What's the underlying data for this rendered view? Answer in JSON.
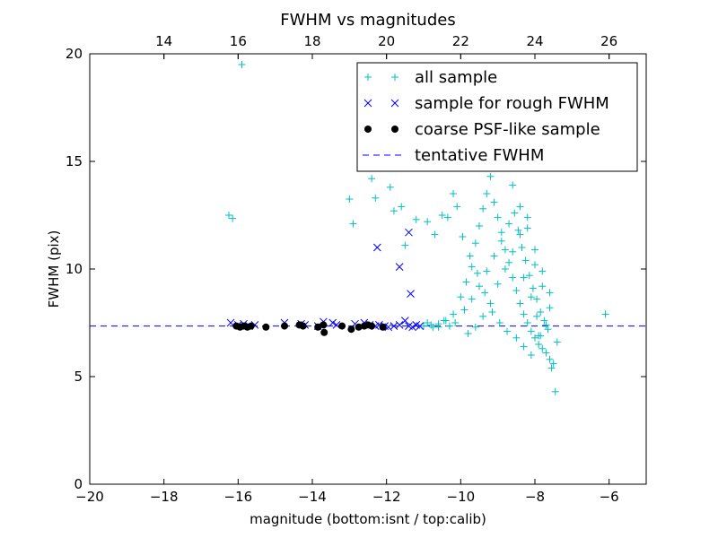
{
  "chart_data": {
    "type": "scatter",
    "title": "FWHM vs magnitudes",
    "xlabel": "magnitude (bottom:isnt / top:calib)",
    "ylabel": "FWHM (pix)",
    "xlim": [
      -20,
      -5
    ],
    "ylim": [
      0,
      20
    ],
    "x_ticks": [
      "−20",
      "−18",
      "−16",
      "−14",
      "−12",
      "−10",
      "−8",
      "−6"
    ],
    "x_tick_values": [
      -20,
      -18,
      -16,
      -14,
      -12,
      -10,
      -8,
      -6
    ],
    "y_ticks": [
      "0",
      "5",
      "10",
      "15",
      "20"
    ],
    "y_tick_values": [
      0,
      5,
      10,
      15,
      20
    ],
    "top_axis": {
      "ticks": [
        "14",
        "16",
        "18",
        "20",
        "22",
        "24",
        "26"
      ],
      "tick_values": [
        14,
        16,
        18,
        20,
        22,
        24,
        26
      ],
      "offset": 32
    },
    "grid": false,
    "legend_position": "top-right",
    "series": [
      {
        "name": "all sample",
        "marker": "plus",
        "color": "#00bfbf",
        "x": [
          -16.25,
          -16.15,
          -15.9,
          -13.0,
          -12.9,
          -12.4,
          -12.3,
          -11.9,
          -11.8,
          -11.6,
          -11.5,
          -11.2,
          -10.9,
          -10.7,
          -10.5,
          -10.35,
          -10.2,
          -10.8,
          -10.6,
          -10.4,
          -10.2,
          -10.0,
          -9.85,
          -9.7,
          -9.6,
          -9.5,
          -9.4,
          -9.3,
          -9.2,
          -9.1,
          -9.0,
          -8.9,
          -8.8,
          -8.7,
          -8.6,
          -8.5,
          -8.4,
          -8.3,
          -8.2,
          -8.1,
          -8.0,
          -7.9,
          -7.8,
          -7.7,
          -7.6,
          -7.5,
          -7.4,
          -6.1,
          -9.9,
          -9.7,
          -9.5,
          -9.3,
          -9.1,
          -8.9,
          -8.7,
          -8.55,
          -8.45,
          -8.35,
          -8.25,
          -8.15,
          -8.05,
          -7.95,
          -7.85,
          -7.75,
          -7.65,
          -9.8,
          -9.6,
          -9.4,
          -9.2,
          -9.0,
          -8.8,
          -8.6,
          -8.4,
          -8.2,
          -8.0,
          -7.8,
          -7.6,
          -7.55,
          -10.1,
          -9.95,
          -9.75,
          -9.55,
          -9.35,
          -9.15,
          -8.95,
          -8.75,
          -8.5,
          -8.3,
          -8.1,
          -7.9,
          -7.7,
          -11.0,
          -10.9,
          -10.75,
          -10.6,
          -10.45,
          -10.3,
          -10.15,
          -9.0,
          -8.8,
          -8.6,
          -8.4,
          -8.2,
          -8.0,
          -7.8,
          -7.6,
          -8.3,
          -8.1,
          -7.95,
          -7.85,
          -7.45
        ],
        "y": [
          12.5,
          12.35,
          19.5,
          13.25,
          12.1,
          14.2,
          13.3,
          13.8,
          12.7,
          12.9,
          11.1,
          12.3,
          12.2,
          11.6,
          12.5,
          12.4,
          13.5,
          7.4,
          7.3,
          7.6,
          7.9,
          8.7,
          9.4,
          10.1,
          11.2,
          12.0,
          12.8,
          13.5,
          14.3,
          13.1,
          12.4,
          11.7,
          10.9,
          10.3,
          9.6,
          9.0,
          8.4,
          7.9,
          7.5,
          7.1,
          6.8,
          6.5,
          6.3,
          6.1,
          5.8,
          5.6,
          6.6,
          7.9,
          8.1,
          8.6,
          9.2,
          9.9,
          10.6,
          11.3,
          12.1,
          12.6,
          11.8,
          11.0,
          10.4,
          9.7,
          9.1,
          8.6,
          8.0,
          7.6,
          7.2,
          7.0,
          7.3,
          7.8,
          8.4,
          9.3,
          10.0,
          10.8,
          11.6,
          12.4,
          10.2,
          9.2,
          8.2,
          5.4,
          12.9,
          11.5,
          10.6,
          9.8,
          8.9,
          8.0,
          7.5,
          7.1,
          6.8,
          6.4,
          6.0,
          6.9,
          7.4,
          7.35,
          7.5,
          7.3,
          7.45,
          7.6,
          7.35,
          7.5,
          14.7,
          15.4,
          13.9,
          12.9,
          11.9,
          10.9,
          9.9,
          8.9,
          9.6,
          8.7,
          7.8,
          6.9,
          4.3
        ]
      },
      {
        "name": "sample for rough FWHM",
        "marker": "x",
        "color": "#0000ff",
        "x": [
          -16.2,
          -16.0,
          -15.85,
          -15.7,
          -15.55,
          -14.75,
          -14.3,
          -14.2,
          -13.85,
          -13.7,
          -13.45,
          -13.35,
          -12.85,
          -12.6,
          -12.45,
          -12.3,
          -12.2,
          -12.05,
          -11.95,
          -11.8,
          -11.65,
          -11.5,
          -11.4,
          -11.3,
          -11.2,
          -11.1,
          -12.25,
          -11.4,
          -11.65,
          -11.35
        ],
        "y": [
          7.5,
          7.4,
          7.45,
          7.35,
          7.4,
          7.5,
          7.45,
          7.4,
          7.35,
          7.55,
          7.5,
          7.4,
          7.45,
          7.5,
          7.4,
          7.35,
          7.4,
          7.35,
          7.3,
          7.35,
          7.4,
          7.6,
          7.35,
          7.3,
          7.4,
          7.35,
          11.0,
          11.7,
          10.1,
          8.85
        ]
      },
      {
        "name": "coarse PSF-like sample",
        "marker": "dot",
        "color": "#000000",
        "x": [
          -16.05,
          -15.95,
          -15.85,
          -15.75,
          -15.65,
          -15.25,
          -14.75,
          -14.35,
          -14.25,
          -13.85,
          -13.7,
          -13.68,
          -13.2,
          -12.95,
          -12.75,
          -12.6,
          -12.5,
          -12.4,
          -12.1
        ],
        "y": [
          7.35,
          7.3,
          7.35,
          7.3,
          7.35,
          7.3,
          7.35,
          7.4,
          7.35,
          7.3,
          7.4,
          7.05,
          7.35,
          7.2,
          7.3,
          7.35,
          7.4,
          7.35,
          7.3
        ]
      },
      {
        "name": "tentative FWHM",
        "marker": "dashed-line",
        "color": "#0000ff",
        "y": 7.35
      }
    ]
  }
}
